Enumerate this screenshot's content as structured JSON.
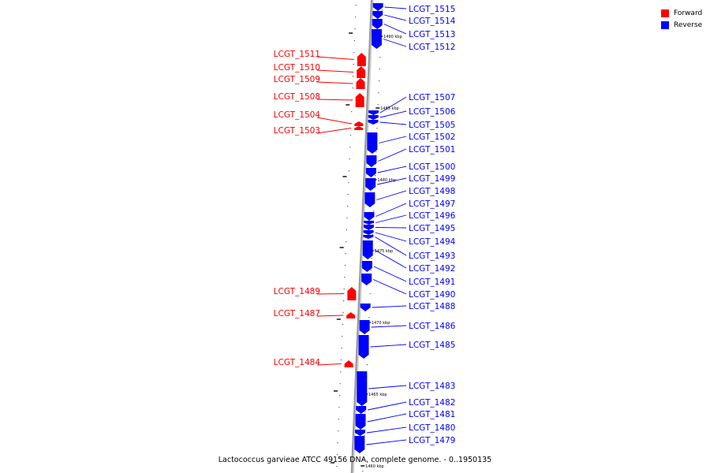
{
  "caption": "Lactococcus garvieae ATCC 49156 DNA, complete genome. - 0..1950135",
  "legend": [
    {
      "label": "Forward",
      "color": "#ff0000"
    },
    {
      "label": "Reverse",
      "color": "#0000ff"
    }
  ],
  "colors": {
    "forward": "#ff0000",
    "reverse": "#0000ff",
    "backbone": "#999999"
  },
  "scale_labels": [
    "1490 kbp",
    "1485 kbp",
    "1480 kbp",
    "1475 kbp",
    "1470 kbp",
    "1465 kbp",
    "1460 kbp"
  ],
  "genes_forward": [
    "LCGT_1511",
    "LCGT_1510",
    "LCGT_1509",
    "LCGT_1508",
    "LCGT_1504",
    "LCGT_1503",
    "LCGT_1489",
    "LCGT_1487",
    "LCGT_1484"
  ],
  "genes_reverse": [
    "LCGT_1515",
    "LCGT_1514",
    "LCGT_1513",
    "LCGT_1512",
    "LCGT_1507",
    "LCGT_1506",
    "LCGT_1505",
    "LCGT_1502",
    "LCGT_1501",
    "LCGT_1500",
    "LCGT_1499",
    "LCGT_1498",
    "LCGT_1497",
    "LCGT_1496",
    "LCGT_1495",
    "LCGT_1494",
    "LCGT_1493",
    "LCGT_1492",
    "LCGT_1491",
    "LCGT_1490",
    "LCGT_1488",
    "LCGT_1486",
    "LCGT_1485",
    "LCGT_1483",
    "LCGT_1482",
    "LCGT_1481",
    "LCGT_1480",
    "LCGT_1479"
  ]
}
